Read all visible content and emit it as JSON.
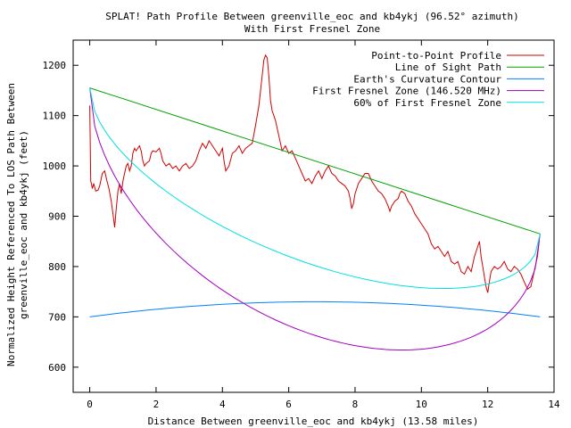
{
  "chart_data": {
    "type": "line",
    "title": "SPLAT! Path Profile Between greenville_eoc and kb4ykj (96.52° azimuth)",
    "subtitle": "With First Fresnel Zone",
    "xlabel": "Distance Between greenville_eoc and kb4ykj (13.58 miles)",
    "ylabel_line1": "Normalized Height Referenced To LOS Path Between",
    "ylabel_line2": "greenville_eoc and kb4ykj (feet)",
    "xlim": [
      -0.5,
      14
    ],
    "ylim": [
      550,
      1250
    ],
    "x_ticks": [
      0,
      2,
      4,
      6,
      8,
      10,
      12,
      14
    ],
    "y_ticks": [
      600,
      700,
      800,
      900,
      1000,
      1100,
      1200
    ],
    "legend_position": "top-right",
    "grid": false,
    "series": [
      {
        "name": "Point-to-Point Profile",
        "color": "#d00000",
        "points": [
          [
            0,
            1120
          ],
          [
            0.03,
            970
          ],
          [
            0.08,
            955
          ],
          [
            0.12,
            965
          ],
          [
            0.18,
            950
          ],
          [
            0.25,
            952
          ],
          [
            0.3,
            960
          ],
          [
            0.38,
            985
          ],
          [
            0.45,
            990
          ],
          [
            0.52,
            970
          ],
          [
            0.58,
            955
          ],
          [
            0.65,
            930
          ],
          [
            0.7,
            905
          ],
          [
            0.75,
            878
          ],
          [
            0.8,
            915
          ],
          [
            0.85,
            950
          ],
          [
            0.9,
            965
          ],
          [
            0.95,
            945
          ],
          [
            1.0,
            970
          ],
          [
            1.05,
            985
          ],
          [
            1.1,
            1000
          ],
          [
            1.15,
            1005
          ],
          [
            1.2,
            990
          ],
          [
            1.25,
            1000
          ],
          [
            1.3,
            1025
          ],
          [
            1.35,
            1035
          ],
          [
            1.4,
            1030
          ],
          [
            1.5,
            1040
          ],
          [
            1.55,
            1030
          ],
          [
            1.6,
            1010
          ],
          [
            1.65,
            1000
          ],
          [
            1.7,
            1005
          ],
          [
            1.8,
            1010
          ],
          [
            1.85,
            1025
          ],
          [
            1.9,
            1030
          ],
          [
            2.0,
            1028
          ],
          [
            2.1,
            1035
          ],
          [
            2.15,
            1025
          ],
          [
            2.2,
            1010
          ],
          [
            2.3,
            1000
          ],
          [
            2.4,
            1005
          ],
          [
            2.5,
            995
          ],
          [
            2.6,
            1000
          ],
          [
            2.7,
            990
          ],
          [
            2.8,
            1000
          ],
          [
            2.9,
            1005
          ],
          [
            3.0,
            995
          ],
          [
            3.1,
            1000
          ],
          [
            3.2,
            1010
          ],
          [
            3.3,
            1030
          ],
          [
            3.4,
            1045
          ],
          [
            3.5,
            1035
          ],
          [
            3.6,
            1050
          ],
          [
            3.7,
            1040
          ],
          [
            3.8,
            1030
          ],
          [
            3.9,
            1020
          ],
          [
            4.0,
            1035
          ],
          [
            4.05,
            1010
          ],
          [
            4.1,
            990
          ],
          [
            4.2,
            1000
          ],
          [
            4.3,
            1025
          ],
          [
            4.4,
            1030
          ],
          [
            4.5,
            1040
          ],
          [
            4.6,
            1025
          ],
          [
            4.7,
            1035
          ],
          [
            4.8,
            1040
          ],
          [
            4.9,
            1045
          ],
          [
            5.0,
            1080
          ],
          [
            5.1,
            1120
          ],
          [
            5.2,
            1180
          ],
          [
            5.25,
            1210
          ],
          [
            5.3,
            1220
          ],
          [
            5.35,
            1215
          ],
          [
            5.4,
            1180
          ],
          [
            5.45,
            1130
          ],
          [
            5.5,
            1110
          ],
          [
            5.6,
            1090
          ],
          [
            5.7,
            1060
          ],
          [
            5.8,
            1030
          ],
          [
            5.9,
            1040
          ],
          [
            6.0,
            1025
          ],
          [
            6.1,
            1030
          ],
          [
            6.2,
            1015
          ],
          [
            6.3,
            1000
          ],
          [
            6.4,
            985
          ],
          [
            6.5,
            970
          ],
          [
            6.6,
            975
          ],
          [
            6.7,
            965
          ],
          [
            6.8,
            980
          ],
          [
            6.9,
            990
          ],
          [
            7.0,
            975
          ],
          [
            7.1,
            990
          ],
          [
            7.2,
            1000
          ],
          [
            7.3,
            985
          ],
          [
            7.4,
            980
          ],
          [
            7.5,
            970
          ],
          [
            7.6,
            965
          ],
          [
            7.7,
            960
          ],
          [
            7.8,
            950
          ],
          [
            7.85,
            935
          ],
          [
            7.9,
            915
          ],
          [
            7.95,
            925
          ],
          [
            8.0,
            945
          ],
          [
            8.1,
            965
          ],
          [
            8.2,
            975
          ],
          [
            8.3,
            985
          ],
          [
            8.4,
            985
          ],
          [
            8.5,
            970
          ],
          [
            8.6,
            960
          ],
          [
            8.7,
            950
          ],
          [
            8.8,
            945
          ],
          [
            8.9,
            935
          ],
          [
            9.0,
            920
          ],
          [
            9.05,
            910
          ],
          [
            9.1,
            920
          ],
          [
            9.2,
            930
          ],
          [
            9.3,
            935
          ],
          [
            9.35,
            945
          ],
          [
            9.4,
            950
          ],
          [
            9.5,
            945
          ],
          [
            9.6,
            930
          ],
          [
            9.7,
            920
          ],
          [
            9.8,
            905
          ],
          [
            9.9,
            895
          ],
          [
            10.0,
            885
          ],
          [
            10.1,
            875
          ],
          [
            10.2,
            865
          ],
          [
            10.3,
            845
          ],
          [
            10.4,
            835
          ],
          [
            10.5,
            840
          ],
          [
            10.6,
            830
          ],
          [
            10.7,
            820
          ],
          [
            10.8,
            830
          ],
          [
            10.9,
            810
          ],
          [
            11.0,
            805
          ],
          [
            11.1,
            810
          ],
          [
            11.2,
            790
          ],
          [
            11.3,
            785
          ],
          [
            11.4,
            800
          ],
          [
            11.5,
            790
          ],
          [
            11.6,
            820
          ],
          [
            11.7,
            840
          ],
          [
            11.75,
            850
          ],
          [
            11.8,
            820
          ],
          [
            11.85,
            800
          ],
          [
            11.9,
            780
          ],
          [
            11.95,
            760
          ],
          [
            12.0,
            748
          ],
          [
            12.05,
            770
          ],
          [
            12.1,
            790
          ],
          [
            12.2,
            800
          ],
          [
            12.3,
            795
          ],
          [
            12.4,
            800
          ],
          [
            12.5,
            810
          ],
          [
            12.6,
            795
          ],
          [
            12.7,
            790
          ],
          [
            12.8,
            800
          ],
          [
            12.9,
            795
          ],
          [
            13.0,
            785
          ],
          [
            13.1,
            770
          ],
          [
            13.2,
            755
          ],
          [
            13.3,
            760
          ],
          [
            13.4,
            790
          ],
          [
            13.5,
            820
          ],
          [
            13.55,
            850
          ]
        ]
      },
      {
        "name": "Line of Sight Path",
        "color": "#00a000",
        "points": [
          [
            0,
            1155
          ],
          [
            13.58,
            865
          ]
        ]
      },
      {
        "name": "Earth's Curvature Contour",
        "color": "#0080ff",
        "kind": "curvature",
        "ends": 700,
        "peak": 730
      },
      {
        "name": "First Fresnel Zone (146.520 MHz)",
        "color": "#a000c0",
        "kind": "fresnel",
        "factor": 1.0
      },
      {
        "name": "60% of First Fresnel Zone",
        "color": "#00e0e0",
        "kind": "fresnel",
        "factor": 0.6
      }
    ],
    "fresnel_params": {
      "distance_miles": 13.58,
      "freq_mhz": 146.52
    }
  }
}
